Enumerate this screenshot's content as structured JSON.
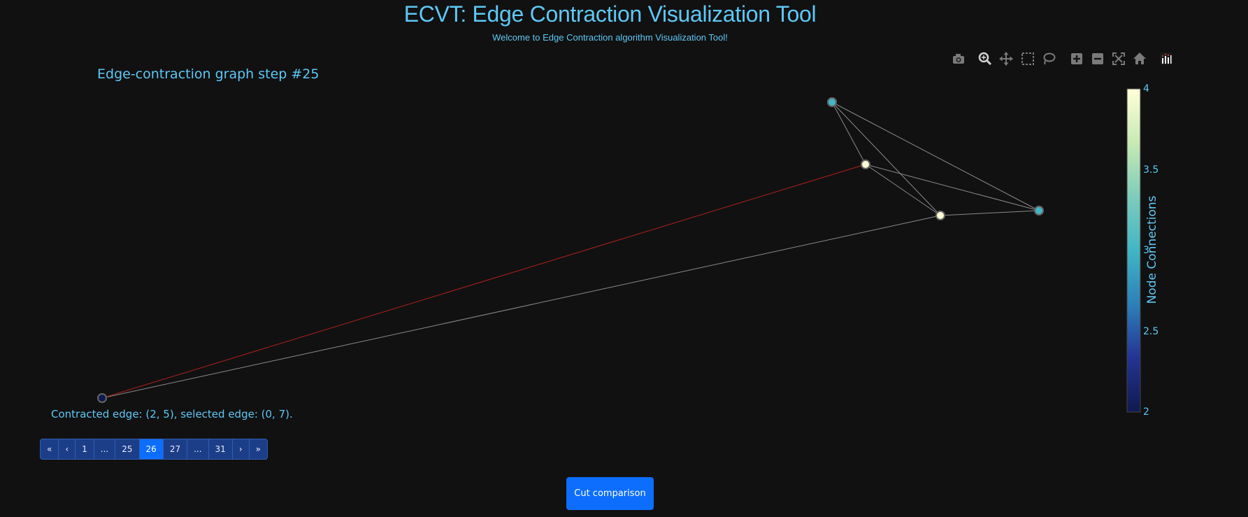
{
  "header": {
    "title": "ECVT: Edge Contraction Visualization Tool",
    "subtitle": "Welcome to Edge Contraction algorithm Visualization Tool!"
  },
  "graph": {
    "title": "Edge-contraction graph step #25",
    "colorbar": {
      "title": "Node Connections",
      "ticks": [
        "4",
        "3.5",
        "3",
        "2.5",
        "2"
      ],
      "range": [
        2,
        4
      ],
      "colorscale": [
        "#0f1a4f",
        "#253494",
        "#2c7fb8",
        "#41b6c4",
        "#7fcdbb",
        "#c7e9b4",
        "#ffffd9"
      ]
    },
    "nodes": [
      {
        "id": "a",
        "connections": 3
      },
      {
        "id": "b",
        "connections": 4
      },
      {
        "id": "c",
        "connections": 4
      },
      {
        "id": "d",
        "connections": 3
      },
      {
        "id": "e",
        "connections": 2
      }
    ],
    "edges": [
      {
        "from": "a",
        "to": "b",
        "contracted": false
      },
      {
        "from": "a",
        "to": "c",
        "contracted": false
      },
      {
        "from": "a",
        "to": "d",
        "contracted": false
      },
      {
        "from": "b",
        "to": "c",
        "contracted": false
      },
      {
        "from": "b",
        "to": "d",
        "contracted": false
      },
      {
        "from": "c",
        "to": "d",
        "contracted": false
      },
      {
        "from": "c",
        "to": "e",
        "contracted": false
      },
      {
        "from": "b",
        "to": "e",
        "contracted": true
      }
    ],
    "colors": {
      "edge": "#8a8a8a",
      "contracted_edge": "#b3201e",
      "node_outline": "#666666"
    }
  },
  "modebar": {
    "icons": [
      "camera-icon",
      "zoom-icon",
      "pan-icon",
      "box-select-icon",
      "lasso-select-icon",
      "zoom-in-icon",
      "zoom-out-icon",
      "autoscale-icon",
      "reset-axes-icon",
      "plotly-logo-icon"
    ]
  },
  "status": {
    "text": "Contracted edge: (2, 5), selected edge: (0, 7)."
  },
  "pagination": {
    "first": "«",
    "prev": "‹",
    "pages": [
      "1",
      "...",
      "25",
      "26",
      "27",
      "...",
      "31"
    ],
    "active": "26",
    "next": "›",
    "last": "»"
  },
  "actions": {
    "cut_comparison_label": "Cut comparison"
  }
}
